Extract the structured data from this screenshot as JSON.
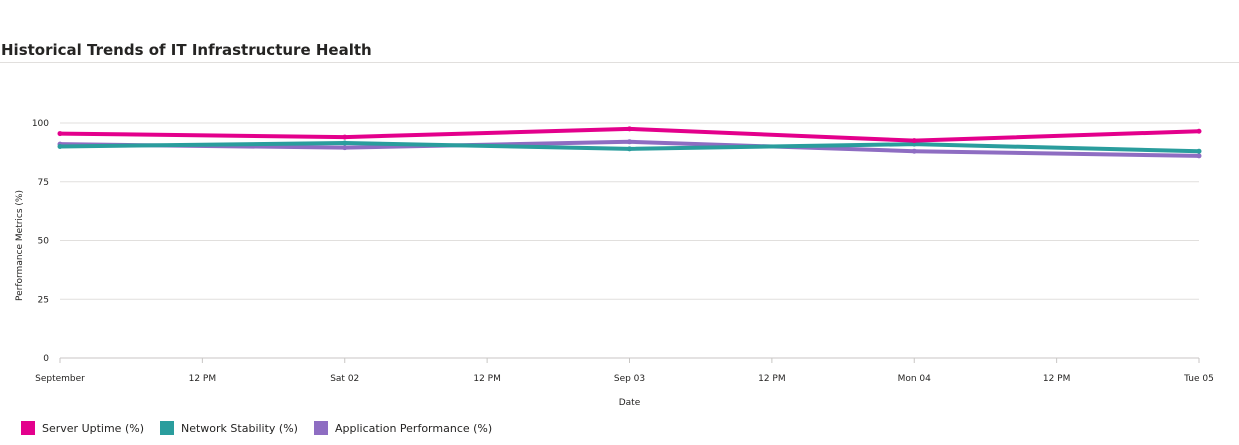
{
  "title": "Historical Trends of IT Infrastructure Health",
  "chart_data": {
    "type": "line",
    "xlabel": "Date",
    "ylabel": "Performance Metrics (%)",
    "ylim": [
      0,
      100
    ],
    "yticks": [
      "0",
      "25",
      "50",
      "75",
      "100"
    ],
    "xticks": [
      "September",
      "12 PM",
      "Sat 02",
      "12 PM",
      "Sep 03",
      "12 PM",
      "Mon 04",
      "12 PM",
      "Tue 05"
    ],
    "x": [
      "2023-09-01",
      "2023-09-02",
      "2023-09-03",
      "2023-09-04",
      "2023-09-05"
    ],
    "grid": true,
    "legend_position": "bottom-left",
    "series": [
      {
        "name": "Server Uptime (%)",
        "color": "#E3008C",
        "values": [
          95.5,
          94.0,
          97.5,
          92.5,
          96.5
        ]
      },
      {
        "name": "Network Stability (%)",
        "color": "#2A9D9D",
        "values": [
          90.0,
          91.5,
          89.0,
          91.0,
          88.0
        ]
      },
      {
        "name": "Application Performance (%)",
        "color": "#8E6DC2",
        "values": [
          91.0,
          89.5,
          92.0,
          88.0,
          86.0
        ]
      }
    ]
  }
}
